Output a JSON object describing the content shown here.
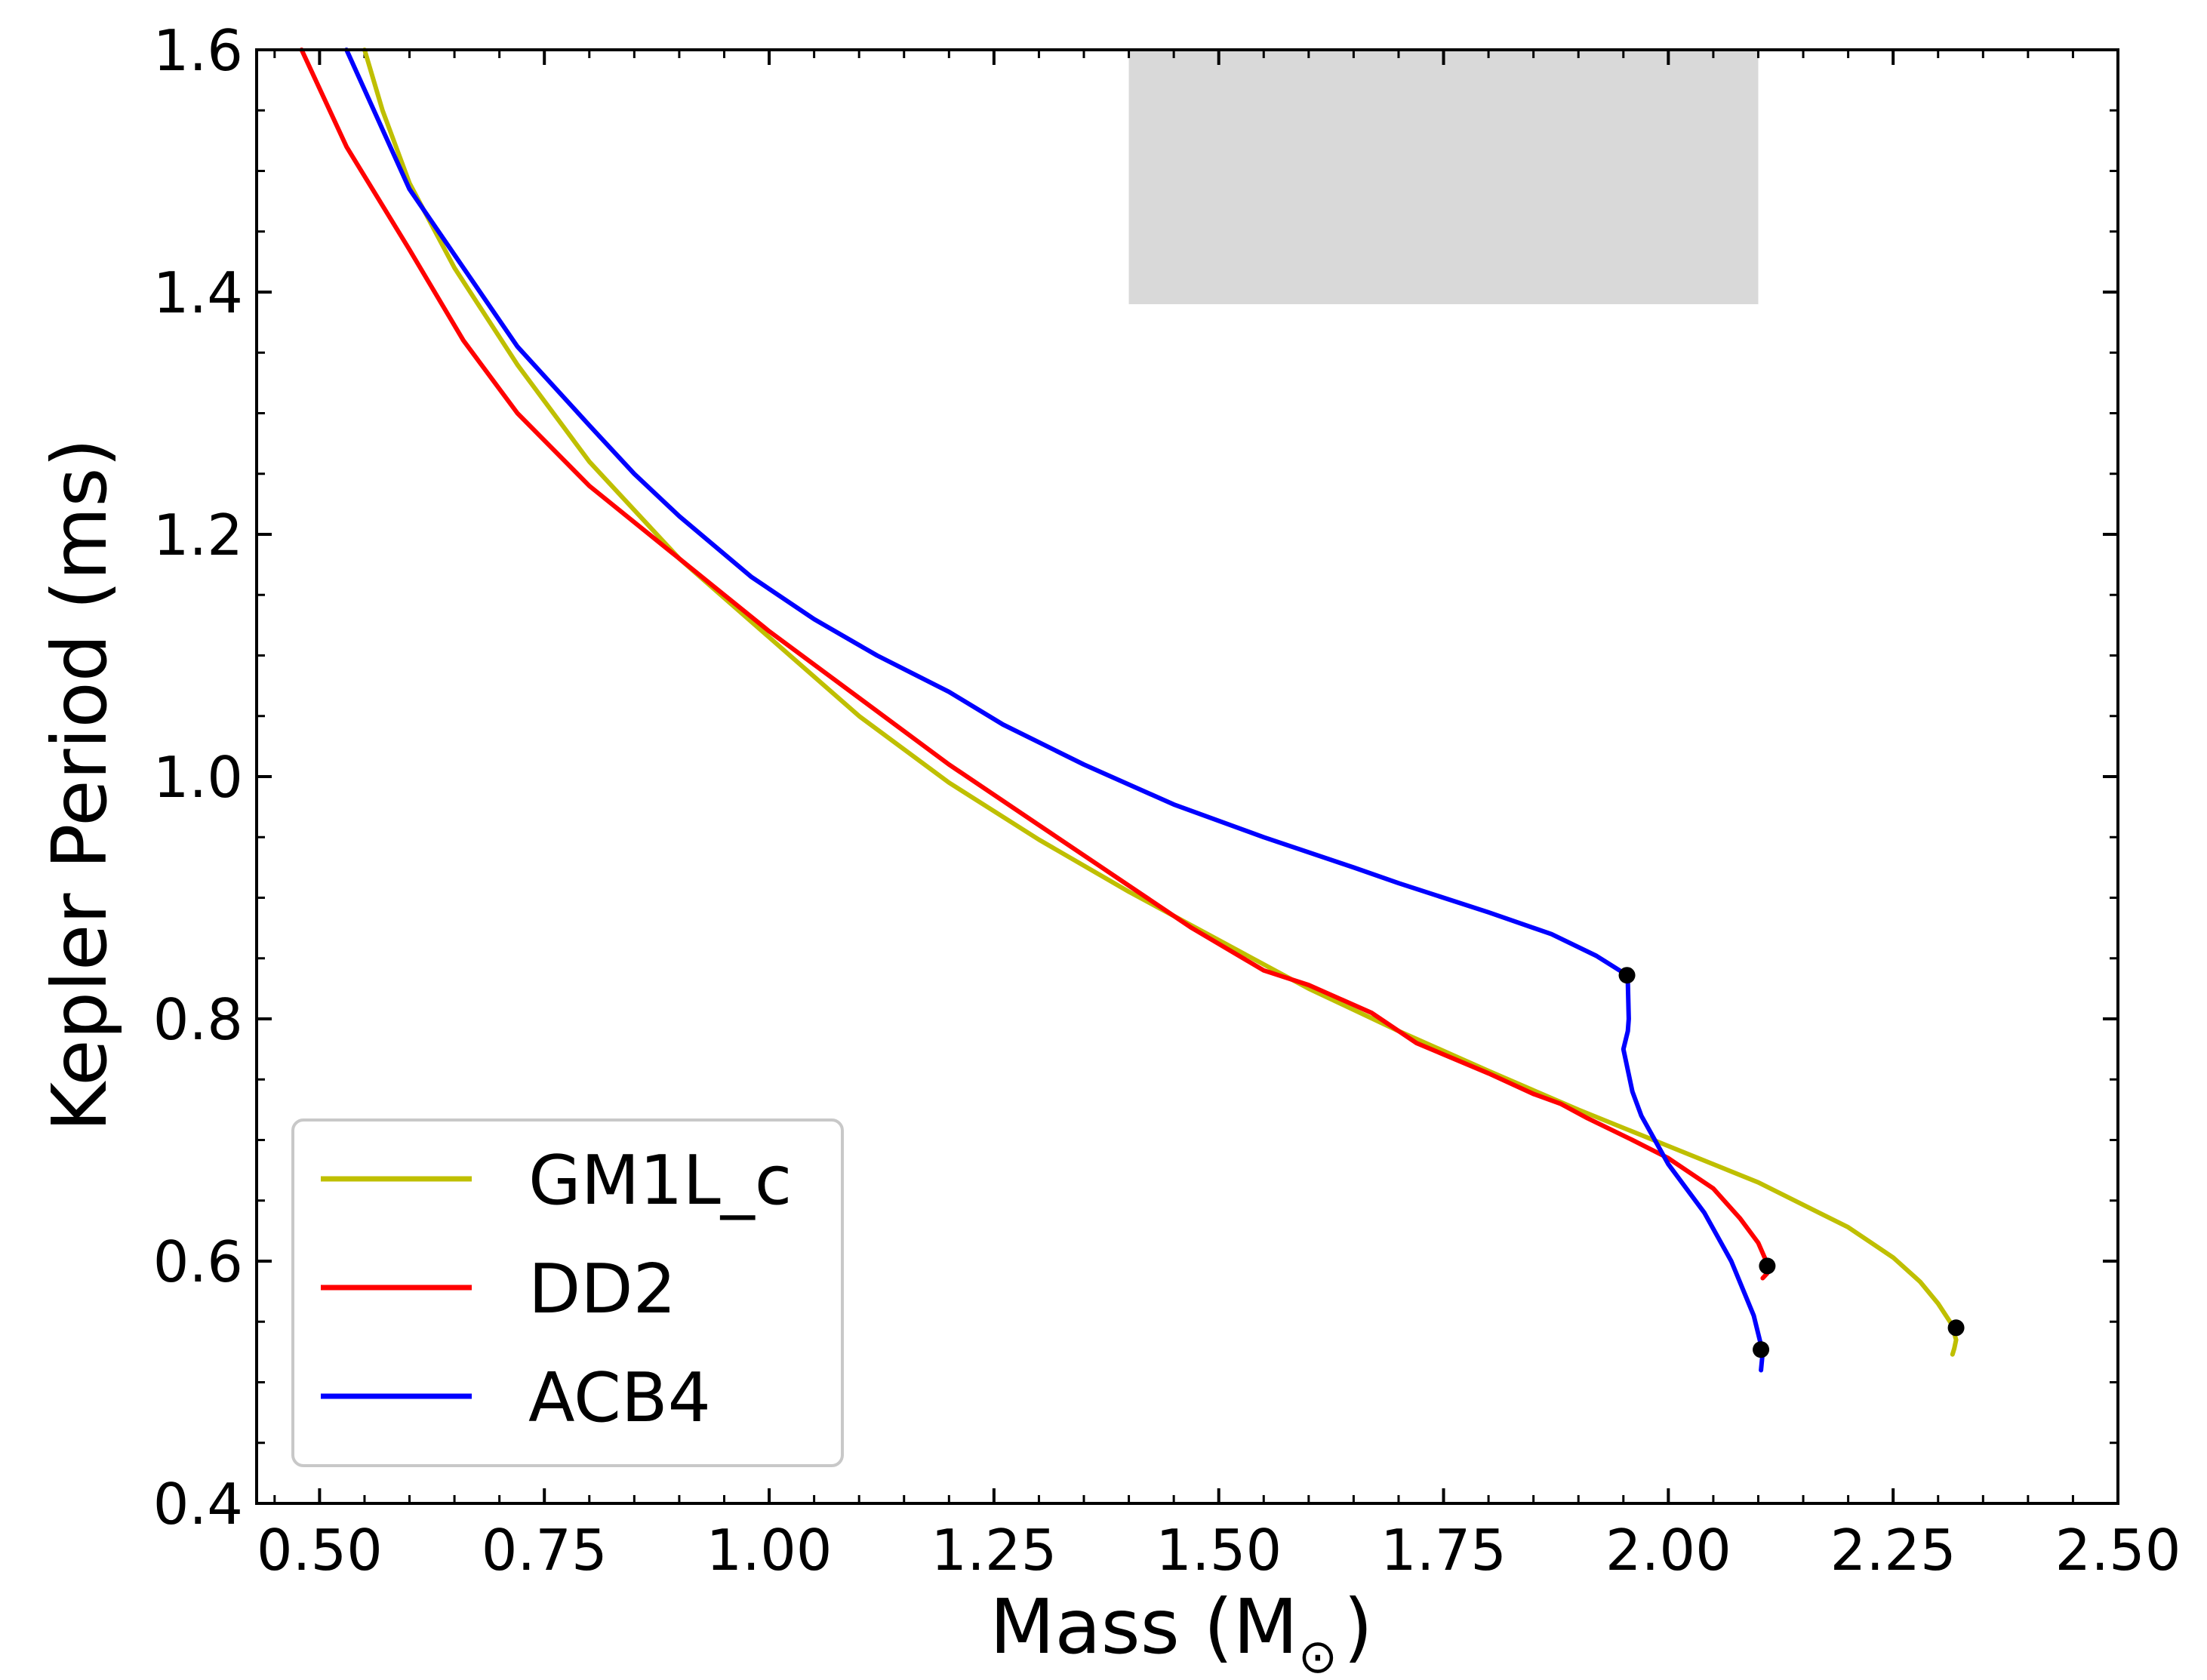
{
  "chart_data": {
    "type": "line",
    "title": "",
    "xlabel": "Mass (M",
    "xlabel_sub": "⊙",
    "xlabel_close": ")",
    "ylabel": "Kepler Period (ms)",
    "xlim": [
      0.43,
      2.5
    ],
    "ylim": [
      0.4,
      1.6
    ],
    "xticks": [
      0.5,
      0.75,
      1.0,
      1.25,
      1.5,
      1.75,
      2.0,
      2.25,
      2.5
    ],
    "xtick_labels": [
      "0.50",
      "0.75",
      "1.00",
      "1.25",
      "1.50",
      "1.75",
      "2.00",
      "2.25",
      "2.50"
    ],
    "yticks": [
      0.4,
      0.6,
      0.8,
      1.0,
      1.2,
      1.4,
      1.6
    ],
    "ytick_labels": [
      "0.4",
      "0.6",
      "0.8",
      "1.0",
      "1.2",
      "1.4",
      "1.6"
    ],
    "x_minor_step": 0.05,
    "y_minor_step": 0.05,
    "grid": false,
    "legend_position": "lower-left",
    "shaded_region": {
      "x": [
        1.4,
        2.1
      ],
      "y": [
        1.39,
        1.6
      ],
      "color": "#d9d9d9"
    },
    "series": [
      {
        "name": "GM1L_c",
        "color": "#bfbf00",
        "x": [
          0.55,
          0.57,
          0.6,
          0.65,
          0.72,
          0.8,
          0.9,
          1.0,
          1.1,
          1.2,
          1.3,
          1.4,
          1.5,
          1.6,
          1.7,
          1.8,
          1.9,
          2.0,
          2.1,
          2.2,
          2.25,
          2.28,
          2.3,
          2.315,
          2.32,
          2.318,
          2.316
        ],
        "y": [
          1.6,
          1.55,
          1.49,
          1.42,
          1.34,
          1.26,
          1.18,
          1.115,
          1.05,
          0.995,
          0.948,
          0.905,
          0.865,
          0.825,
          0.79,
          0.757,
          0.725,
          0.695,
          0.665,
          0.628,
          0.603,
          0.583,
          0.565,
          0.548,
          0.535,
          0.528,
          0.523
        ],
        "max_point": {
          "x": 2.32,
          "y": 0.545
        }
      },
      {
        "name": "DD2",
        "color": "#ff0000",
        "x": [
          0.48,
          0.53,
          0.6,
          0.66,
          0.72,
          0.8,
          0.9,
          1.0,
          1.1,
          1.2,
          1.3,
          1.4,
          1.47,
          1.55,
          1.6,
          1.67,
          1.72,
          1.8,
          1.85,
          1.88,
          1.91,
          1.96,
          2.0,
          2.05,
          2.08,
          2.1,
          2.11,
          2.11,
          2.105
        ],
        "y": [
          1.6,
          1.52,
          1.435,
          1.36,
          1.3,
          1.24,
          1.18,
          1.12,
          1.065,
          1.01,
          0.96,
          0.91,
          0.875,
          0.84,
          0.828,
          0.805,
          0.78,
          0.755,
          0.738,
          0.73,
          0.718,
          0.7,
          0.685,
          0.66,
          0.635,
          0.615,
          0.598,
          0.59,
          0.586
        ],
        "max_point": {
          "x": 2.11,
          "y": 0.596
        }
      },
      {
        "name": "ACB4",
        "color": "#0000ff",
        "x": [
          0.53,
          0.6,
          0.66,
          0.72,
          0.8,
          0.85,
          0.9,
          0.98,
          1.05,
          1.12,
          1.2,
          1.26,
          1.35,
          1.45,
          1.55,
          1.65,
          1.7,
          1.8,
          1.87,
          1.92,
          1.95,
          1.955,
          1.956,
          1.955,
          1.95,
          1.96,
          1.97,
          2.0,
          2.04,
          2.07,
          2.095,
          2.105,
          2.103
        ],
        "y": [
          1.6,
          1.485,
          1.42,
          1.355,
          1.29,
          1.25,
          1.215,
          1.165,
          1.13,
          1.1,
          1.07,
          1.043,
          1.01,
          0.977,
          0.95,
          0.925,
          0.912,
          0.888,
          0.87,
          0.852,
          0.838,
          0.83,
          0.8,
          0.79,
          0.775,
          0.74,
          0.72,
          0.68,
          0.64,
          0.6,
          0.555,
          0.525,
          0.51
        ],
        "max_point": {
          "x": 2.103,
          "y": 0.527
        },
        "extra_point": {
          "x": 1.954,
          "y": 0.836
        }
      }
    ]
  }
}
